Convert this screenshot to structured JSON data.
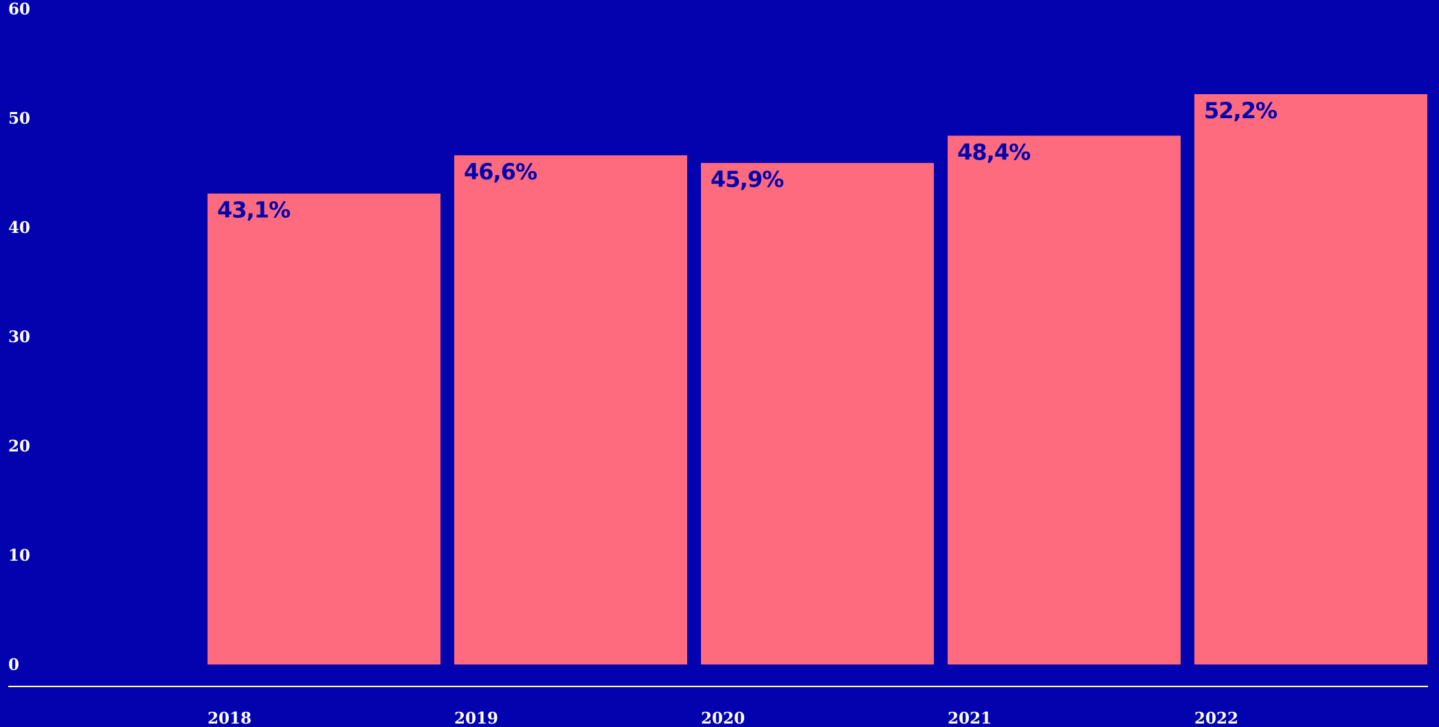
{
  "chart_data": {
    "type": "bar",
    "categories": [
      "2018",
      "2019",
      "2020",
      "2021",
      "2022"
    ],
    "values": [
      43.1,
      46.6,
      45.9,
      48.4,
      52.2
    ],
    "data_labels": [
      "43,1%",
      "46,6%",
      "45,9%",
      "48,4%",
      "52,2%"
    ],
    "y_ticks": [
      "0",
      "10",
      "20",
      "30",
      "40",
      "50",
      "60"
    ],
    "title": "",
    "xlabel": "",
    "ylabel": "",
    "ylim": [
      0,
      60
    ],
    "grid": false,
    "legend": "none"
  },
  "colors": {
    "background": "#0202AE",
    "bar": "#FF6B7E",
    "data_label": "#0202AE",
    "axis_text": "#FFFFFF",
    "baseline": "#FFFFFF"
  }
}
